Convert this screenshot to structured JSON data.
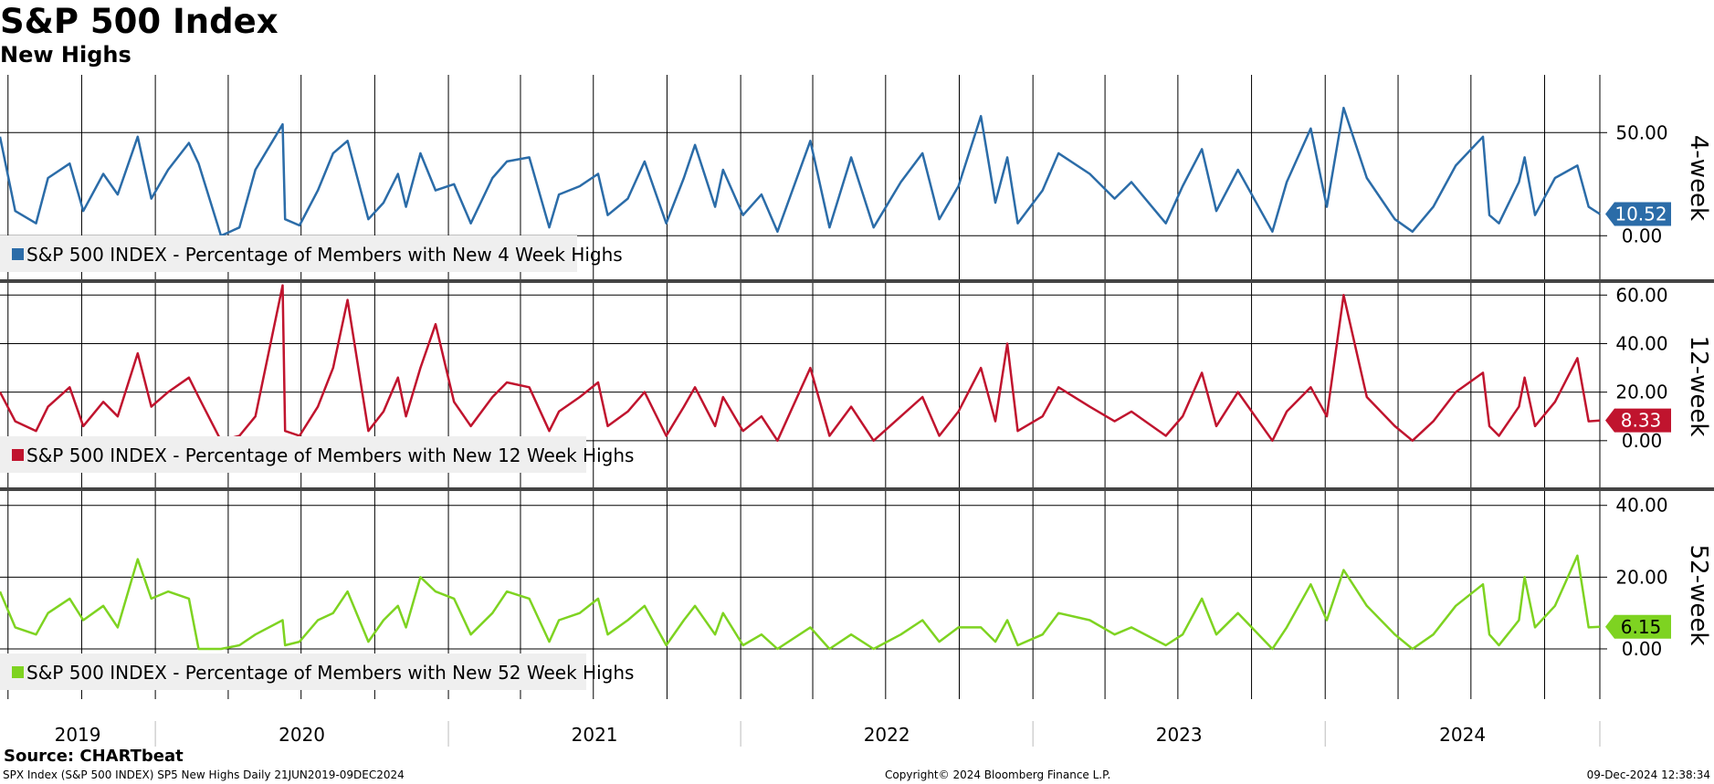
{
  "header": {
    "title": "S&P 500 Index",
    "subtitle": "New Highs"
  },
  "footer": {
    "source": "Source: CHARTbeat",
    "left": "SPX Index (S&P 500 INDEX) SP5 New Highs  Daily 21JUN2019-09DEC2024",
    "center": "Copyright© 2024 Bloomberg Finance L.P.",
    "right": "09-Dec-2024 12:38:34"
  },
  "colors": {
    "blue": "#2b6ca8",
    "red": "#c0142e",
    "green": "#7ed321",
    "grid": "#000000",
    "legend_bg": "#efefef"
  },
  "chart_data": {
    "type": "line",
    "x_range": [
      "2019-06-21",
      "2024-12-09"
    ],
    "x_tick_labels": [
      "2019",
      "2020",
      "2021",
      "2022",
      "2023",
      "2024"
    ],
    "panels": [
      {
        "axis_label": "4-week",
        "legend": "S&P 500 INDEX - Percentage of Members with New 4 Week Highs",
        "color_key": "blue",
        "ylim": [
          -22,
          78
        ],
        "yticks": [
          "0.00",
          "50.00"
        ],
        "last_value": "10.52",
        "series": {
          "name": "S&P 500 INDEX - Percentage of Members with New 4 Week Highs",
          "x": [
            "2019-06-21",
            "2019-07-10",
            "2019-08-05",
            "2019-08-20",
            "2019-09-16",
            "2019-10-03",
            "2019-10-28",
            "2019-11-15",
            "2019-12-10",
            "2019-12-27",
            "2020-01-17",
            "2020-02-12",
            "2020-02-24",
            "2020-03-23",
            "2020-04-15",
            "2020-05-05",
            "2020-06-08",
            "2020-06-11",
            "2020-06-29",
            "2020-07-22",
            "2020-08-10",
            "2020-08-28",
            "2020-09-23",
            "2020-10-12",
            "2020-10-30",
            "2020-11-09",
            "2020-11-27",
            "2020-12-16",
            "2021-01-08",
            "2021-01-29",
            "2021-02-25",
            "2021-03-15",
            "2021-04-12",
            "2021-05-07",
            "2021-05-19",
            "2021-06-14",
            "2021-07-07",
            "2021-07-19",
            "2021-08-13",
            "2021-09-03",
            "2021-09-30",
            "2021-10-22",
            "2021-11-05",
            "2021-11-30",
            "2021-12-10",
            "2022-01-04",
            "2022-01-27",
            "2022-02-16",
            "2022-03-29",
            "2022-04-22",
            "2022-05-19",
            "2022-06-16",
            "2022-07-20",
            "2022-08-16",
            "2022-09-06",
            "2022-09-30",
            "2022-10-28",
            "2022-11-15",
            "2022-11-30",
            "2022-12-13",
            "2023-01-13",
            "2023-02-02",
            "2023-03-13",
            "2023-04-13",
            "2023-05-04",
            "2023-06-16",
            "2023-07-07",
            "2023-07-31",
            "2023-08-18",
            "2023-09-14",
            "2023-10-27",
            "2023-11-14",
            "2023-12-14",
            "2024-01-03",
            "2024-01-24",
            "2024-02-22",
            "2024-03-28",
            "2024-04-19",
            "2024-05-15",
            "2024-06-12",
            "2024-07-16",
            "2024-07-24",
            "2024-08-05",
            "2024-08-30",
            "2024-09-06",
            "2024-09-19",
            "2024-10-14",
            "2024-11-11",
            "2024-11-25",
            "2024-12-09"
          ],
          "y": [
            48,
            12,
            6,
            28,
            35,
            12,
            30,
            20,
            48,
            18,
            32,
            45,
            35,
            0,
            4,
            32,
            54,
            8,
            5,
            22,
            40,
            46,
            8,
            16,
            30,
            14,
            40,
            22,
            25,
            6,
            28,
            36,
            38,
            4,
            20,
            24,
            30,
            10,
            18,
            36,
            6,
            28,
            44,
            14,
            32,
            10,
            20,
            2,
            46,
            4,
            38,
            4,
            26,
            40,
            8,
            24,
            58,
            16,
            38,
            6,
            22,
            40,
            30,
            18,
            26,
            6,
            24,
            42,
            12,
            32,
            2,
            26,
            52,
            14,
            62,
            28,
            8,
            2,
            14,
            34,
            48,
            10,
            6,
            26,
            38,
            10,
            28,
            34,
            14,
            10.52
          ]
        }
      },
      {
        "axis_label": "12-week",
        "legend": "S&P 500 INDEX - Percentage of Members with New 12 Week Highs",
        "color_key": "red",
        "ylim": [
          -20,
          65
        ],
        "yticks": [
          "0.00",
          "20.00",
          "40.00",
          "60.00"
        ],
        "last_value": "8.33",
        "series": {
          "name": "S&P 500 INDEX - Percentage of Members with New 12 Week Highs",
          "x": [
            "2019-06-21",
            "2019-07-10",
            "2019-08-05",
            "2019-08-20",
            "2019-09-16",
            "2019-10-03",
            "2019-10-28",
            "2019-11-15",
            "2019-12-10",
            "2019-12-27",
            "2020-01-17",
            "2020-02-12",
            "2020-02-24",
            "2020-03-23",
            "2020-04-15",
            "2020-05-05",
            "2020-06-08",
            "2020-06-11",
            "2020-06-29",
            "2020-07-22",
            "2020-08-10",
            "2020-08-28",
            "2020-09-23",
            "2020-10-12",
            "2020-10-30",
            "2020-11-09",
            "2020-11-27",
            "2020-12-16",
            "2021-01-08",
            "2021-01-29",
            "2021-02-25",
            "2021-03-15",
            "2021-04-12",
            "2021-05-07",
            "2021-05-19",
            "2021-06-14",
            "2021-07-07",
            "2021-07-19",
            "2021-08-13",
            "2021-09-03",
            "2021-09-30",
            "2021-10-22",
            "2021-11-05",
            "2021-11-30",
            "2021-12-10",
            "2022-01-04",
            "2022-01-27",
            "2022-02-16",
            "2022-03-29",
            "2022-04-22",
            "2022-05-19",
            "2022-06-16",
            "2022-07-20",
            "2022-08-16",
            "2022-09-06",
            "2022-09-30",
            "2022-10-28",
            "2022-11-15",
            "2022-11-30",
            "2022-12-13",
            "2023-01-13",
            "2023-02-02",
            "2023-03-13",
            "2023-04-13",
            "2023-05-04",
            "2023-06-16",
            "2023-07-07",
            "2023-07-31",
            "2023-08-18",
            "2023-09-14",
            "2023-10-27",
            "2023-11-14",
            "2023-12-14",
            "2024-01-03",
            "2024-01-24",
            "2024-02-22",
            "2024-03-28",
            "2024-04-19",
            "2024-05-15",
            "2024-06-12",
            "2024-07-16",
            "2024-07-24",
            "2024-08-05",
            "2024-08-30",
            "2024-09-06",
            "2024-09-19",
            "2024-10-14",
            "2024-11-11",
            "2024-11-25",
            "2024-12-09"
          ],
          "y": [
            20,
            8,
            4,
            14,
            22,
            6,
            16,
            10,
            36,
            14,
            20,
            26,
            18,
            0,
            2,
            10,
            64,
            4,
            2,
            14,
            30,
            58,
            4,
            12,
            26,
            10,
            30,
            48,
            16,
            6,
            18,
            24,
            22,
            4,
            12,
            18,
            24,
            6,
            12,
            20,
            2,
            14,
            22,
            6,
            18,
            4,
            10,
            0,
            30,
            2,
            14,
            0,
            10,
            18,
            2,
            12,
            30,
            8,
            40,
            4,
            10,
            22,
            14,
            8,
            12,
            2,
            10,
            28,
            6,
            20,
            0,
            12,
            22,
            10,
            60,
            18,
            6,
            0,
            8,
            20,
            28,
            6,
            2,
            14,
            26,
            6,
            16,
            34,
            8,
            8.33
          ]
        }
      },
      {
        "axis_label": "52-week",
        "legend": "S&P 500 INDEX - Percentage of Members with New 52 Week Highs",
        "color_key": "green",
        "ylim": [
          -14,
          44
        ],
        "yticks": [
          "0.00",
          "20.00",
          "40.00"
        ],
        "last_value": "6.15",
        "series": {
          "name": "S&P 500 INDEX - Percentage of Members with New 52 Week Highs",
          "x": [
            "2019-06-21",
            "2019-07-10",
            "2019-08-05",
            "2019-08-20",
            "2019-09-16",
            "2019-10-03",
            "2019-10-28",
            "2019-11-15",
            "2019-12-10",
            "2019-12-27",
            "2020-01-17",
            "2020-02-12",
            "2020-02-24",
            "2020-03-23",
            "2020-04-15",
            "2020-05-05",
            "2020-06-08",
            "2020-06-11",
            "2020-06-29",
            "2020-07-22",
            "2020-08-10",
            "2020-08-28",
            "2020-09-23",
            "2020-10-12",
            "2020-10-30",
            "2020-11-09",
            "2020-11-27",
            "2020-12-16",
            "2021-01-08",
            "2021-01-29",
            "2021-02-25",
            "2021-03-15",
            "2021-04-12",
            "2021-05-07",
            "2021-05-19",
            "2021-06-14",
            "2021-07-07",
            "2021-07-19",
            "2021-08-13",
            "2021-09-03",
            "2021-09-30",
            "2021-10-22",
            "2021-11-05",
            "2021-11-30",
            "2021-12-10",
            "2022-01-04",
            "2022-01-27",
            "2022-02-16",
            "2022-03-29",
            "2022-04-22",
            "2022-05-19",
            "2022-06-16",
            "2022-07-20",
            "2022-08-16",
            "2022-09-06",
            "2022-09-30",
            "2022-10-28",
            "2022-11-15",
            "2022-11-30",
            "2022-12-13",
            "2023-01-13",
            "2023-02-02",
            "2023-03-13",
            "2023-04-13",
            "2023-05-04",
            "2023-06-16",
            "2023-07-07",
            "2023-07-31",
            "2023-08-18",
            "2023-09-14",
            "2023-10-27",
            "2023-11-14",
            "2023-12-14",
            "2024-01-03",
            "2024-01-24",
            "2024-02-22",
            "2024-03-28",
            "2024-04-19",
            "2024-05-15",
            "2024-06-12",
            "2024-07-16",
            "2024-07-24",
            "2024-08-05",
            "2024-08-30",
            "2024-09-06",
            "2024-09-19",
            "2024-10-14",
            "2024-11-11",
            "2024-11-25",
            "2024-12-09"
          ],
          "y": [
            16,
            6,
            4,
            10,
            14,
            8,
            12,
            6,
            25,
            14,
            16,
            14,
            0,
            0,
            1,
            4,
            8,
            1,
            2,
            8,
            10,
            16,
            2,
            8,
            12,
            6,
            20,
            16,
            14,
            4,
            10,
            16,
            14,
            2,
            8,
            10,
            14,
            4,
            8,
            12,
            1,
            8,
            12,
            4,
            10,
            1,
            4,
            0,
            6,
            0,
            4,
            0,
            4,
            8,
            2,
            6,
            6,
            2,
            8,
            1,
            4,
            10,
            8,
            4,
            6,
            1,
            4,
            14,
            4,
            10,
            0,
            6,
            18,
            8,
            22,
            12,
            4,
            0,
            4,
            12,
            18,
            4,
            1,
            8,
            20,
            6,
            12,
            26,
            6,
            6.15
          ]
        }
      }
    ]
  }
}
